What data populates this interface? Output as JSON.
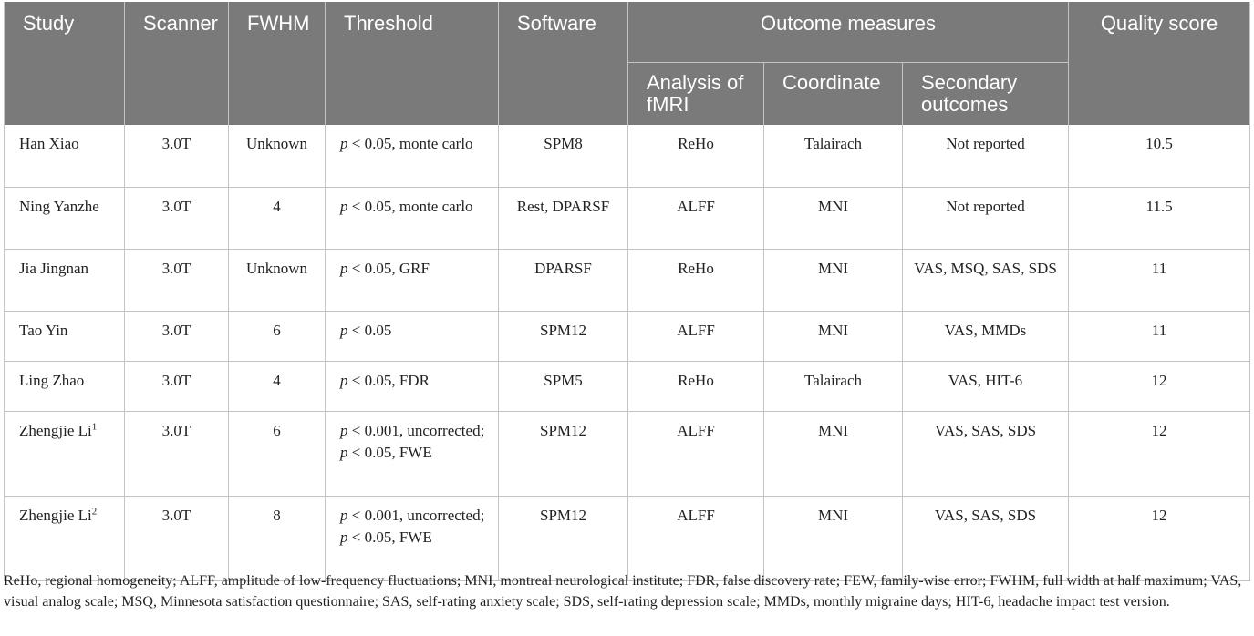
{
  "header": {
    "study": "Study",
    "scanner": "Scanner",
    "fwhm": "FWHM",
    "threshold": "Threshold",
    "software": "Software",
    "outcome_measures": "Outcome measures",
    "analysis_of_fmri": "Analysis of fMRI",
    "coordinate": "Coordinate",
    "secondary_outcomes": "Secondary outcomes",
    "quality_score": "Quality score"
  },
  "rows": [
    {
      "study": "Han Xiao",
      "sup": "",
      "scanner": "3.0T",
      "fwhm": "Unknown",
      "p": "p",
      "threshold": " < 0.05, monte carlo",
      "software": "SPM8",
      "analysis": "ReHo",
      "coordinate": "Talairach",
      "secondary": "Not reported",
      "quality": "10.5"
    },
    {
      "study": "Ning Yanzhe",
      "sup": "",
      "scanner": "3.0T",
      "fwhm": "4",
      "p": "p",
      "threshold": " < 0.05, monte carlo",
      "software": "Rest, DPARSF",
      "analysis": "ALFF",
      "coordinate": "MNI",
      "secondary": "Not reported",
      "quality": "11.5"
    },
    {
      "study": "Jia Jingnan",
      "sup": "",
      "scanner": "3.0T",
      "fwhm": "Unknown",
      "p": "p",
      "threshold": " < 0.05, GRF",
      "software": "DPARSF",
      "analysis": "ReHo",
      "coordinate": "MNI",
      "secondary": "VAS, MSQ, SAS, SDS",
      "quality": "11"
    },
    {
      "study": "Tao Yin",
      "sup": "",
      "scanner": "3.0T",
      "fwhm": "6",
      "p": "p",
      "threshold": " < 0.05",
      "software": "SPM12",
      "analysis": "ALFF",
      "coordinate": "MNI",
      "secondary": "VAS, MMDs",
      "quality": "11"
    },
    {
      "study": "Ling Zhao",
      "sup": "",
      "scanner": "3.0T",
      "fwhm": "4",
      "p": "p",
      "threshold": " < 0.05, FDR",
      "software": "SPM5",
      "analysis": "ReHo",
      "coordinate": "Talairach",
      "secondary": "VAS, HIT-6",
      "quality": "12"
    },
    {
      "study": "Zhengjie Li",
      "sup": "1",
      "scanner": "3.0T",
      "fwhm": "6",
      "p": "p",
      "threshold": " < 0.001, uncorrected; ",
      "p2": "p",
      "threshold2": " < 0.05, FWE",
      "software": "SPM12",
      "analysis": "ALFF",
      "coordinate": "MNI",
      "secondary": "VAS, SAS, SDS",
      "quality": "12"
    },
    {
      "study": "Zhengjie Li",
      "sup": "2",
      "scanner": "3.0T",
      "fwhm": "8",
      "p": "p",
      "threshold": " < 0.001, uncorrected; ",
      "p2": "p",
      "threshold2": " < 0.05, FWE",
      "software": "SPM12",
      "analysis": "ALFF",
      "coordinate": "MNI",
      "secondary": "VAS, SAS, SDS",
      "quality": "12"
    }
  ],
  "footnote": "ReHo, regional homogeneity; ALFF, amplitude of low-frequency fluctuations; MNI, montreal neurological institute; FDR, false discovery rate; FEW, family-wise error; FWHM, full width at half maximum; VAS, visual analog scale; MSQ, Minnesota satisfaction questionnaire; SAS, self-rating anxiety scale; SDS, self-rating depression scale; MMDs, monthly migraine days; HIT-6, headache impact test version."
}
